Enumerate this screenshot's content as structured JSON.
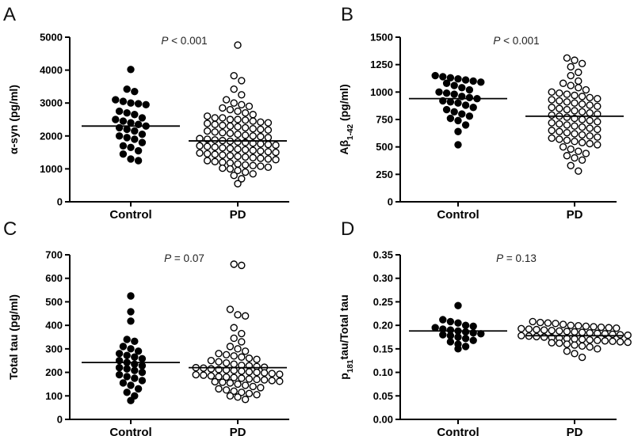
{
  "chart_data": [
    {
      "panel": "A",
      "type": "scatter",
      "ylabel": "α-syn (pg/ml)",
      "ylim": [
        0,
        5000
      ],
      "yticks": [
        0,
        1000,
        2000,
        3000,
        4000,
        5000
      ],
      "categories": [
        "Control",
        "PD"
      ],
      "annotation": {
        "p_symbol": "P",
        "p_text": " < 0.001"
      },
      "series": [
        {
          "name": "Control",
          "marker": "filled",
          "median": 2300,
          "values": [
            4020,
            3420,
            3350,
            3100,
            3050,
            3000,
            2980,
            2950,
            2750,
            2700,
            2650,
            2550,
            2500,
            2450,
            2400,
            2350,
            2300,
            2250,
            2200,
            2150,
            2050,
            2000,
            1950,
            1900,
            1800,
            1700,
            1650,
            1550,
            1450,
            1300,
            1250
          ]
        },
        {
          "name": "PD",
          "marker": "open",
          "median": 1850,
          "values": [
            4760,
            3830,
            3680,
            3420,
            3250,
            3100,
            3000,
            2950,
            2900,
            2850,
            2800,
            2750,
            2700,
            2650,
            2600,
            2550,
            2550,
            2500,
            2500,
            2480,
            2450,
            2420,
            2400,
            2380,
            2350,
            2320,
            2300,
            2280,
            2250,
            2220,
            2200,
            2180,
            2150,
            2120,
            2100,
            2080,
            2050,
            2020,
            2000,
            1980,
            1950,
            1920,
            1900,
            1880,
            1860,
            1840,
            1820,
            1800,
            1780,
            1760,
            1740,
            1720,
            1700,
            1680,
            1660,
            1640,
            1620,
            1600,
            1580,
            1560,
            1540,
            1520,
            1500,
            1480,
            1460,
            1440,
            1420,
            1400,
            1380,
            1360,
            1340,
            1320,
            1300,
            1280,
            1250,
            1220,
            1200,
            1180,
            1150,
            1120,
            1100,
            1080,
            1050,
            1020,
            1000,
            950,
            900,
            850,
            800,
            700,
            550
          ]
        }
      ]
    },
    {
      "panel": "B",
      "type": "scatter",
      "ylabel": "Aβ1-42 (pg/ml)",
      "ylabel_parts": {
        "pre": "Aβ",
        "sub": "1-42",
        "post": " (pg/ml)"
      },
      "ylim": [
        0,
        1500
      ],
      "yticks": [
        0,
        250,
        500,
        750,
        1000,
        1250,
        1500
      ],
      "categories": [
        "Control",
        "PD"
      ],
      "annotation": {
        "p_symbol": "P",
        "p_text": " < 0.001"
      },
      "series": [
        {
          "name": "Control",
          "marker": "filled",
          "median": 940,
          "values": [
            1150,
            1140,
            1130,
            1120,
            1110,
            1100,
            1090,
            1080,
            1060,
            1040,
            1020,
            1000,
            990,
            980,
            960,
            950,
            940,
            920,
            910,
            900,
            880,
            860,
            840,
            820,
            800,
            780,
            760,
            740,
            700,
            640,
            520
          ]
        },
        {
          "name": "PD",
          "marker": "open",
          "median": 780,
          "values": [
            1310,
            1290,
            1260,
            1230,
            1180,
            1150,
            1100,
            1080,
            1060,
            1040,
            1020,
            1000,
            990,
            980,
            970,
            960,
            950,
            940,
            930,
            920,
            910,
            900,
            890,
            880,
            870,
            860,
            850,
            840,
            830,
            820,
            810,
            800,
            790,
            780,
            770,
            760,
            750,
            740,
            730,
            720,
            710,
            700,
            690,
            680,
            670,
            660,
            650,
            640,
            630,
            620,
            610,
            600,
            590,
            580,
            570,
            560,
            550,
            540,
            530,
            520,
            500,
            480,
            460,
            440,
            420,
            400,
            380,
            330,
            280
          ]
        }
      ]
    },
    {
      "panel": "C",
      "type": "scatter",
      "ylabel": "Total tau (pg/ml)",
      "ylim": [
        0,
        700
      ],
      "yticks": [
        0,
        100,
        200,
        300,
        400,
        500,
        600,
        700
      ],
      "categories": [
        "Control",
        "PD"
      ],
      "annotation": {
        "p_symbol": "P",
        "p_text": " = 0.07"
      },
      "series": [
        {
          "name": "Control",
          "marker": "filled",
          "median": 242,
          "values": [
            525,
            458,
            418,
            340,
            332,
            310,
            300,
            290,
            280,
            272,
            265,
            258,
            250,
            242,
            235,
            228,
            220,
            215,
            208,
            200,
            190,
            182,
            175,
            165,
            155,
            145,
            130,
            115,
            100,
            80
          ]
        },
        {
          "name": "PD",
          "marker": "open",
          "median": 220,
          "values": [
            660,
            655,
            468,
            445,
            440,
            390,
            365,
            345,
            330,
            310,
            300,
            290,
            280,
            275,
            270,
            265,
            260,
            255,
            250,
            245,
            240,
            235,
            230,
            228,
            225,
            222,
            220,
            218,
            215,
            212,
            210,
            208,
            205,
            202,
            200,
            198,
            195,
            192,
            190,
            188,
            185,
            182,
            180,
            178,
            175,
            172,
            170,
            168,
            165,
            162,
            160,
            158,
            155,
            150,
            145,
            140,
            135,
            130,
            125,
            120,
            115,
            110,
            105,
            100,
            95,
            85
          ]
        }
      ]
    },
    {
      "panel": "D",
      "type": "scatter",
      "ylabel": "p181tau/Total tau",
      "ylabel_parts": {
        "pre": "p",
        "sub": "181",
        "post": "tau/Total tau"
      },
      "ylim": [
        0,
        0.35
      ],
      "yticks": [
        "0.00",
        "0.05",
        "0.10",
        "0.15",
        "0.20",
        "0.25",
        "0.30",
        "0.35"
      ],
      "categories": [
        "Control",
        "PD"
      ],
      "annotation": {
        "p_symbol": "P",
        "p_text": " = 0.13"
      },
      "series": [
        {
          "name": "Control",
          "marker": "filled",
          "median": 0.188,
          "values": [
            0.242,
            0.212,
            0.208,
            0.205,
            0.2,
            0.198,
            0.195,
            0.192,
            0.19,
            0.188,
            0.186,
            0.184,
            0.182,
            0.18,
            0.178,
            0.175,
            0.172,
            0.168,
            0.165,
            0.16,
            0.155,
            0.15
          ]
        },
        {
          "name": "PD",
          "marker": "open",
          "median": 0.178,
          "values": [
            0.208,
            0.206,
            0.205,
            0.204,
            0.202,
            0.2,
            0.199,
            0.198,
            0.197,
            0.196,
            0.195,
            0.194,
            0.193,
            0.192,
            0.191,
            0.19,
            0.189,
            0.188,
            0.187,
            0.186,
            0.185,
            0.184,
            0.183,
            0.182,
            0.181,
            0.18,
            0.179,
            0.178,
            0.177,
            0.176,
            0.175,
            0.174,
            0.173,
            0.172,
            0.171,
            0.17,
            0.169,
            0.168,
            0.167,
            0.166,
            0.165,
            0.164,
            0.163,
            0.162,
            0.16,
            0.158,
            0.156,
            0.154,
            0.15,
            0.145,
            0.14,
            0.132
          ]
        }
      ]
    }
  ]
}
